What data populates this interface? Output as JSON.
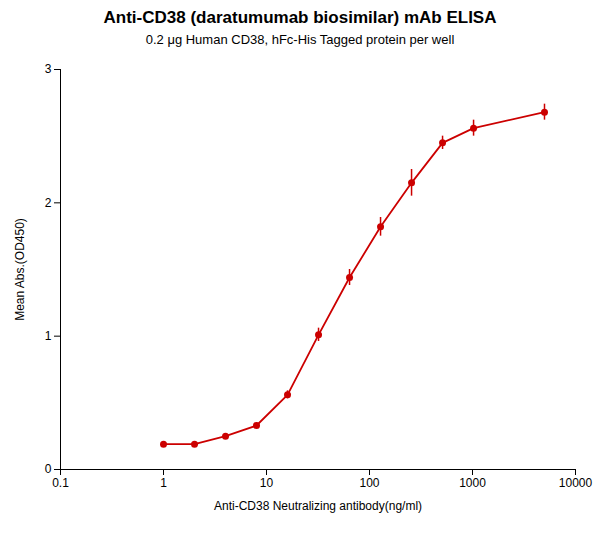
{
  "chart_data": {
    "type": "line",
    "title": "Anti-CD38 (daratumumab biosimilar) mAb ELISA",
    "subtitle": "0.2 μg Human CD38, hFc-His Tagged protein per well",
    "xlabel": "Anti-CD38 Neutralizing antibody(ng/ml)",
    "ylabel": "Mean Abs.(OD450)",
    "x": [
      1.0,
      2.0,
      4.0,
      8.0,
      16.0,
      32.0,
      64.0,
      128.0,
      256.0,
      512.0,
      1024.0,
      5000.0
    ],
    "values": [
      0.19,
      0.19,
      0.25,
      0.33,
      0.56,
      1.01,
      1.44,
      1.82,
      2.15,
      2.45,
      2.56,
      2.68
    ],
    "errors": [
      0.01,
      0.01,
      0.015,
      0.02,
      0.03,
      0.05,
      0.06,
      0.07,
      0.1,
      0.05,
      0.06,
      0.06
    ],
    "color": "#cc0000",
    "marker": "circle",
    "log": "x",
    "xlim": [
      0.1,
      10000
    ],
    "xticks": [
      0.1,
      1,
      10,
      100,
      1000,
      10000
    ],
    "ylim": [
      0,
      3
    ],
    "yticks": [
      0,
      1,
      2,
      3
    ],
    "grid": false
  }
}
